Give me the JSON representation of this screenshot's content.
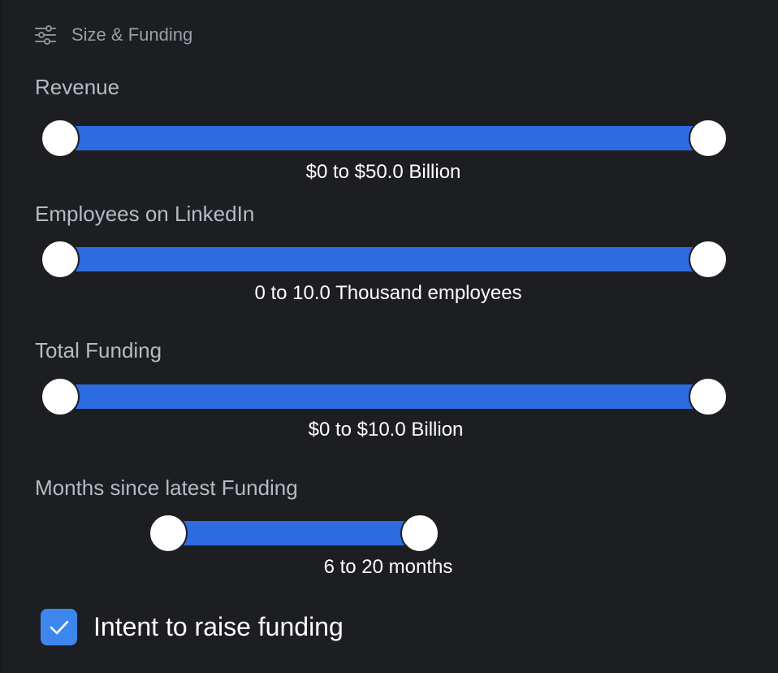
{
  "section": {
    "title": "Size & Funding",
    "icon": "sliders-icon"
  },
  "filters": [
    {
      "label": "Revenue",
      "range_text": "$0 to $50.0 Billion",
      "min_fraction": 0.0,
      "max_fraction": 1.0
    },
    {
      "label": "Employees on LinkedIn",
      "range_text": "0 to 10.0 Thousand employees",
      "min_fraction": 0.0,
      "max_fraction": 1.0
    },
    {
      "label": "Total Funding",
      "range_text": "$0 to $10.0 Billion",
      "min_fraction": 0.0,
      "max_fraction": 1.0
    },
    {
      "label": "Months since latest Funding",
      "range_text": "6 to 20 months"
    }
  ],
  "intent": {
    "label": "Intent to raise funding",
    "checked": true
  },
  "colors": {
    "background": "#1d1e22",
    "track": "#2d6ce0",
    "checkbox": "#3d86ee",
    "label": "#b7bac2"
  }
}
